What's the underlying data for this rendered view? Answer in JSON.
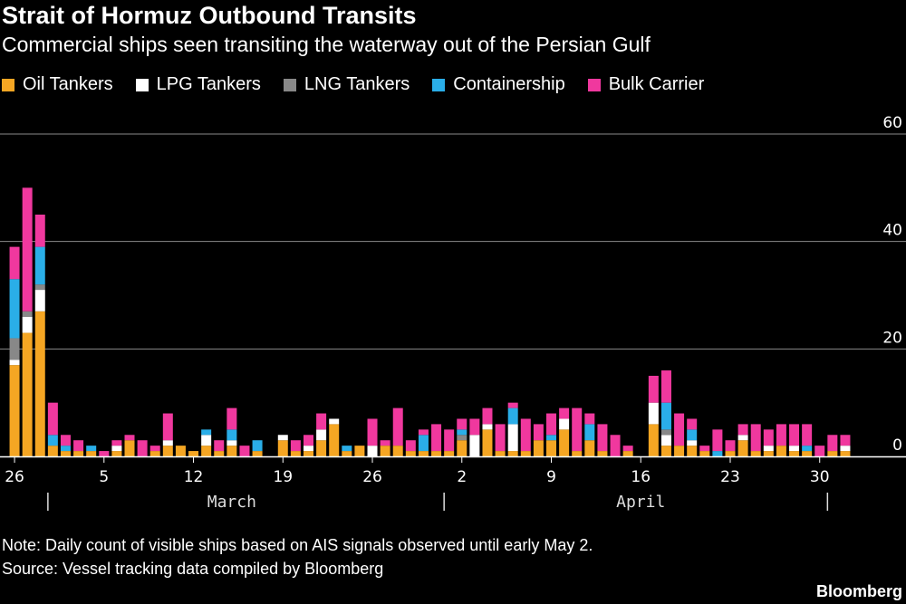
{
  "title": "Strait of Hormuz Outbound Transits",
  "subtitle": "Commercial ships seen transiting the waterway out of the Persian Gulf",
  "note": "Note: Daily count of visible ships based on AIS signals observed until early May 2.",
  "source": "Source: Vessel tracking data compiled by Bloomberg",
  "brand": "Bloomberg",
  "chart_data": {
    "type": "bar",
    "stacked": true,
    "categories": [
      "Feb 26",
      "Feb 27",
      "Feb 28",
      "Mar 1",
      "Mar 2",
      "Mar 3",
      "Mar 4",
      "Mar 5",
      "Mar 6",
      "Mar 7",
      "Mar 8",
      "Mar 9",
      "Mar 10",
      "Mar 11",
      "Mar 12",
      "Mar 13",
      "Mar 14",
      "Mar 15",
      "Mar 16",
      "Mar 17",
      "Mar 18",
      "Mar 19",
      "Mar 20",
      "Mar 21",
      "Mar 22",
      "Mar 23",
      "Mar 24",
      "Mar 25",
      "Mar 26",
      "Mar 27",
      "Mar 28",
      "Mar 29",
      "Mar 30",
      "Mar 31",
      "Apr 1",
      "Apr 2",
      "Apr 3",
      "Apr 4",
      "Apr 5",
      "Apr 6",
      "Apr 7",
      "Apr 8",
      "Apr 9",
      "Apr 10",
      "Apr 11",
      "Apr 12",
      "Apr 13",
      "Apr 14",
      "Apr 15",
      "Apr 16",
      "Apr 17",
      "Apr 18",
      "Apr 19",
      "Apr 20",
      "Apr 21",
      "Apr 22",
      "Apr 23",
      "Apr 24",
      "Apr 25",
      "Apr 26",
      "Apr 27",
      "Apr 28",
      "Apr 29",
      "Apr 30",
      "May 1",
      "May 2"
    ],
    "series": [
      {
        "name": "Oil Tankers",
        "color": "#f5a623",
        "values": [
          17,
          23,
          27,
          2,
          1,
          1,
          1,
          0,
          1,
          3,
          0,
          1,
          2,
          2,
          1,
          2,
          1,
          2,
          0,
          1,
          0,
          3,
          1,
          1,
          3,
          6,
          1,
          2,
          0,
          2,
          2,
          1,
          1,
          1,
          1,
          3,
          0,
          5,
          1,
          1,
          1,
          3,
          3,
          5,
          1,
          3,
          1,
          0,
          1,
          0,
          6,
          2,
          2,
          2,
          1,
          0,
          1,
          3,
          1,
          1,
          2,
          1,
          1,
          0,
          1,
          1
        ]
      },
      {
        "name": "LPG Tankers",
        "color": "#ffffff",
        "values": [
          1,
          3,
          4,
          0,
          0,
          0,
          0,
          0,
          1,
          0,
          0,
          0,
          1,
          0,
          0,
          2,
          0,
          1,
          0,
          0,
          0,
          1,
          0,
          1,
          2,
          1,
          0,
          0,
          2,
          0,
          0,
          0,
          0,
          0,
          0,
          0,
          4,
          1,
          0,
          5,
          0,
          0,
          0,
          2,
          0,
          0,
          0,
          0,
          0,
          0,
          4,
          2,
          0,
          1,
          0,
          0,
          0,
          1,
          0,
          1,
          0,
          1,
          0,
          0,
          0,
          1
        ]
      },
      {
        "name": "LNG Tankers",
        "color": "#888888",
        "values": [
          4,
          1,
          1,
          0,
          0,
          0,
          0,
          0,
          0,
          0,
          0,
          0,
          0,
          0,
          0,
          0,
          0,
          0,
          0,
          0,
          0,
          0,
          0,
          0,
          0,
          0,
          0,
          0,
          0,
          0,
          0,
          0,
          0,
          0,
          0,
          1,
          0,
          0,
          0,
          0,
          0,
          0,
          0,
          0,
          0,
          0,
          0,
          0,
          0,
          0,
          0,
          1,
          0,
          0,
          0,
          0,
          0,
          0,
          0,
          0,
          0,
          0,
          0,
          0,
          0,
          0
        ]
      },
      {
        "name": "Containership",
        "color": "#2aaee8",
        "values": [
          11,
          0,
          7,
          2,
          1,
          0,
          1,
          0,
          0,
          0,
          0,
          0,
          0,
          0,
          0,
          1,
          0,
          2,
          0,
          2,
          0,
          0,
          0,
          0,
          0,
          0,
          1,
          0,
          0,
          0,
          0,
          0,
          3,
          0,
          0,
          1,
          0,
          0,
          0,
          3,
          0,
          0,
          1,
          0,
          0,
          3,
          0,
          0,
          0,
          0,
          0,
          5,
          0,
          2,
          0,
          1,
          0,
          0,
          0,
          0,
          0,
          0,
          1,
          0,
          0,
          0
        ]
      },
      {
        "name": "Bulk Carrier",
        "color": "#f0389e",
        "values": [
          6,
          23,
          6,
          6,
          2,
          2,
          0,
          1,
          1,
          1,
          3,
          1,
          5,
          0,
          0,
          0,
          2,
          4,
          2,
          0,
          0,
          0,
          2,
          2,
          3,
          0,
          0,
          0,
          5,
          1,
          7,
          2,
          1,
          5,
          4,
          2,
          3,
          3,
          5,
          1,
          6,
          3,
          4,
          2,
          8,
          2,
          5,
          4,
          1,
          0,
          5,
          6,
          6,
          2,
          1,
          4,
          2,
          2,
          5,
          3,
          4,
          4,
          4,
          2,
          3,
          2
        ]
      }
    ],
    "y_ticks": [
      0,
      20,
      40,
      60
    ],
    "ylim": [
      0,
      60
    ],
    "x_tick_labels": [
      "26",
      "5",
      "12",
      "19",
      "26",
      "2",
      "9",
      "16",
      "23",
      "30"
    ],
    "x_tick_categories": [
      "Feb 26",
      "Mar 5",
      "Mar 12",
      "Mar 19",
      "Mar 26",
      "Apr 2",
      "Apr 9",
      "Apr 16",
      "Apr 23",
      "Apr 30"
    ],
    "month_labels": [
      "March",
      "April"
    ],
    "month_label_categories": [
      "Mar 15",
      "Apr 16"
    ],
    "month_divider_categories": [
      "Mar 1",
      "Apr 1",
      "May 1"
    ],
    "grid": true,
    "y_axis_position": "right",
    "legend_position": "top-left"
  }
}
